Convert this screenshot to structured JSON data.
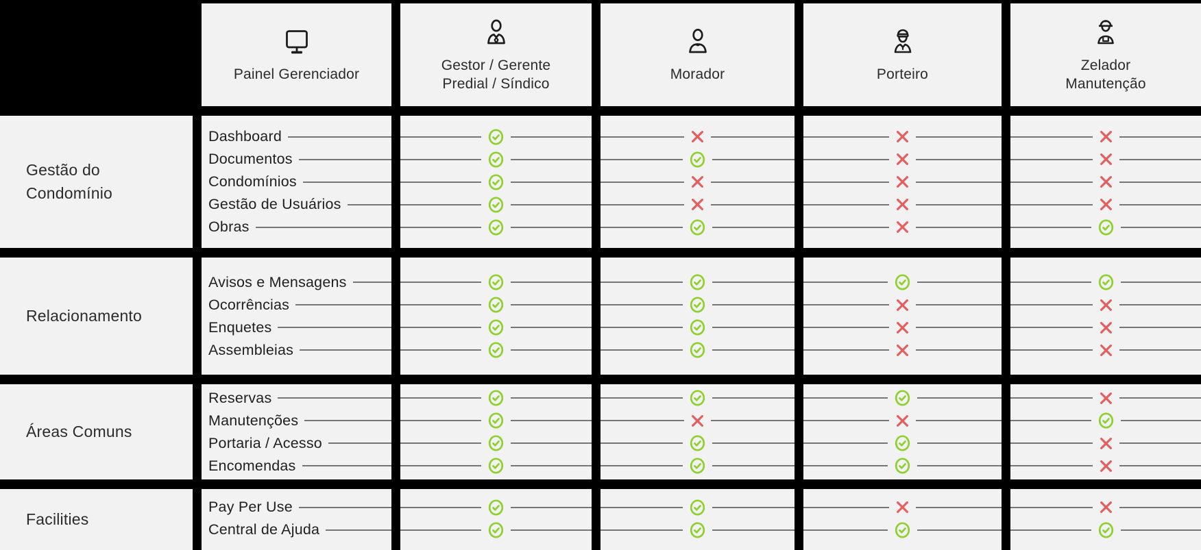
{
  "theme": {
    "background": "#000000",
    "cell_bg": "#F2F2F2",
    "text_color": "#2B2B2B",
    "line_color": "#767676",
    "check_color": "#8FD02F",
    "cross_color": "#E75C5C"
  },
  "header": {
    "columns": [
      {
        "id": "painel",
        "icon": "monitor-icon",
        "label": "Painel Gerenciador"
      },
      {
        "id": "gestor",
        "icon": "manager-person-icon",
        "label": "Gestor / Gerente\nPredial / Síndico"
      },
      {
        "id": "morador",
        "icon": "resident-person-icon",
        "label": "Morador"
      },
      {
        "id": "porteiro",
        "icon": "doorman-person-icon",
        "label": "Porteiro"
      },
      {
        "id": "zelador",
        "icon": "janitor-person-icon",
        "label": "Zelador\nManutenção"
      }
    ]
  },
  "roles_order": [
    "gestor",
    "morador",
    "porteiro",
    "zelador"
  ],
  "sections": [
    {
      "group": "Gestão do Condomínio",
      "features": [
        {
          "name": "Dashboard",
          "access": [
            true,
            false,
            false,
            false
          ]
        },
        {
          "name": "Documentos",
          "access": [
            true,
            true,
            false,
            false
          ]
        },
        {
          "name": "Condomínios",
          "access": [
            true,
            false,
            false,
            false
          ]
        },
        {
          "name": "Gestão de Usuários",
          "access": [
            true,
            false,
            false,
            false
          ]
        },
        {
          "name": "Obras",
          "access": [
            true,
            true,
            false,
            true
          ]
        }
      ]
    },
    {
      "group": "Relacionamento",
      "features": [
        {
          "name": "Avisos e Mensagens",
          "access": [
            true,
            true,
            true,
            true
          ]
        },
        {
          "name": "Ocorrências",
          "access": [
            true,
            true,
            false,
            false
          ]
        },
        {
          "name": "Enquetes",
          "access": [
            true,
            true,
            false,
            false
          ]
        },
        {
          "name": "Assembleias",
          "access": [
            true,
            true,
            false,
            false
          ]
        }
      ]
    },
    {
      "group": "Áreas Comuns",
      "features": [
        {
          "name": "Reservas",
          "access": [
            true,
            true,
            true,
            false
          ]
        },
        {
          "name": "Manutenções",
          "access": [
            true,
            false,
            false,
            true
          ]
        },
        {
          "name": "Portaria / Acesso",
          "access": [
            true,
            true,
            true,
            false
          ]
        },
        {
          "name": "Encomendas",
          "access": [
            true,
            true,
            true,
            false
          ]
        }
      ]
    },
    {
      "group": "Facilities",
      "features": [
        {
          "name": "Pay Per Use",
          "access": [
            true,
            true,
            false,
            false
          ]
        },
        {
          "name": "Central de Ajuda",
          "access": [
            true,
            true,
            true,
            true
          ]
        }
      ]
    }
  ],
  "marks": {
    "allowed": "check",
    "denied": "cross"
  }
}
